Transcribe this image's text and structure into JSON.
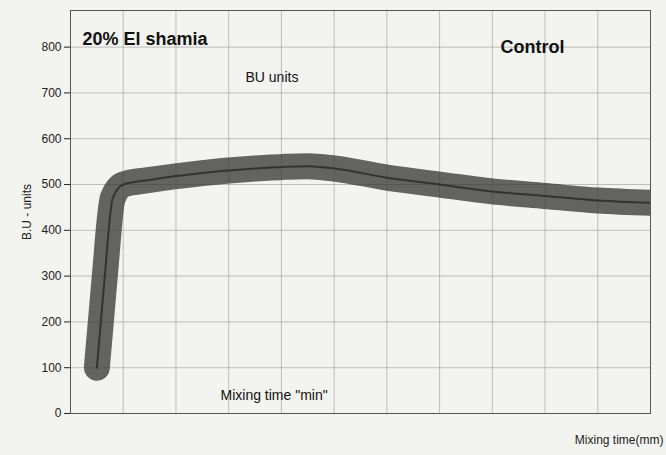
{
  "chart_data": {
    "type": "line",
    "title": "20% El shamia",
    "x_label": "Mixing time(mm)",
    "y_label": "B.U - units",
    "annotations": [
      "Control",
      "BU units",
      "Mixing time \"min\""
    ],
    "x": [
      1,
      1.3,
      1.6,
      2,
      3,
      5,
      7,
      9,
      10,
      12,
      14,
      16,
      18,
      20,
      22
    ],
    "series": [
      {
        "color": "#333333",
        "values": [
          100,
          300,
          470,
          500,
          510,
          525,
          535,
          540,
          535,
          515,
          500,
          485,
          475,
          465,
          460
        ]
      }
    ],
    "xlim": [
      0,
      22
    ],
    "xticks": [
      0,
      2,
      4,
      6,
      8,
      10,
      12,
      14,
      16,
      18,
      20,
      22
    ],
    "ylim": [
      0,
      880
    ],
    "yticks": [
      0,
      100,
      200,
      300,
      400,
      500,
      600,
      700,
      800
    ],
    "grid": true,
    "tick_labels": "y"
  }
}
